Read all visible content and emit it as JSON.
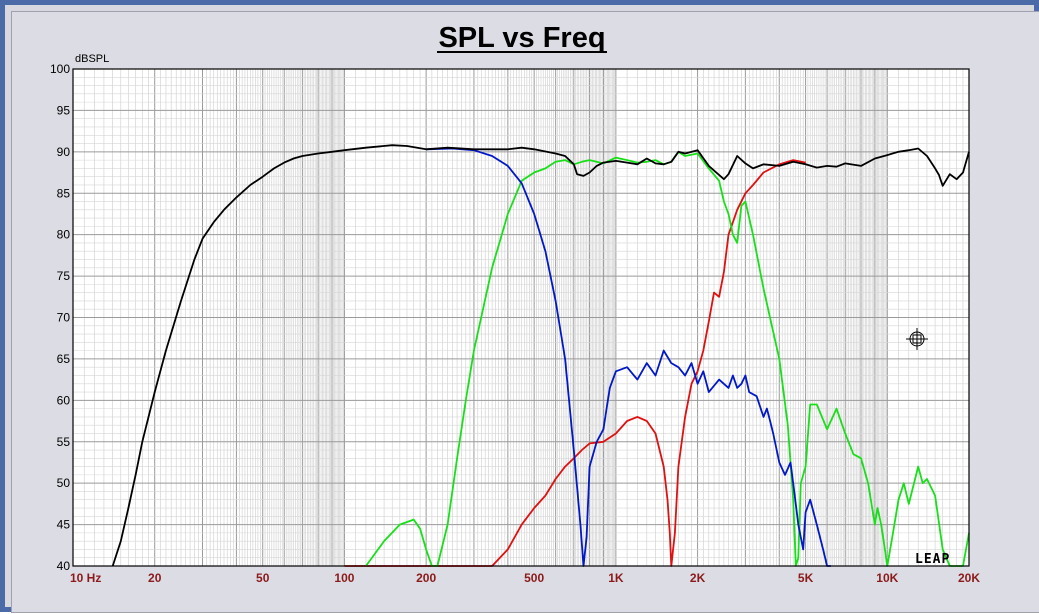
{
  "window": {
    "border_color": "#4a6aa8",
    "panel_color": "#dcdce4"
  },
  "chart_data": {
    "type": "line",
    "title": "SPL vs Freq",
    "ylabel": "dBSPL",
    "xlabel": "",
    "x_scale": "log",
    "xlim": [
      10,
      20000
    ],
    "ylim": [
      40,
      100
    ],
    "grid": true,
    "y_ticks": [
      "100",
      "95",
      "90",
      "85",
      "80",
      "75",
      "70",
      "65",
      "60",
      "55",
      "50",
      "45",
      "40"
    ],
    "x_ticks": [
      {
        "value": 10,
        "label": "10  Hz"
      },
      {
        "value": 20,
        "label": "20"
      },
      {
        "value": 50,
        "label": "50"
      },
      {
        "value": 100,
        "label": "100"
      },
      {
        "value": 200,
        "label": "200"
      },
      {
        "value": 500,
        "label": "500"
      },
      {
        "value": 1000,
        "label": "1K"
      },
      {
        "value": 2000,
        "label": "2K"
      },
      {
        "value": 5000,
        "label": "5K"
      },
      {
        "value": 10000,
        "label": "10K"
      },
      {
        "value": 20000,
        "label": "20K"
      }
    ],
    "series": [
      {
        "color": "#000000",
        "x": [
          14,
          15,
          16,
          17,
          18,
          20,
          22,
          25,
          28,
          30,
          33,
          36,
          40,
          45,
          50,
          55,
          60,
          65,
          70,
          80,
          90,
          100,
          120,
          150,
          170,
          200,
          240,
          300,
          400,
          450,
          500,
          600,
          650,
          700,
          720,
          760,
          800,
          850,
          900,
          1000,
          1100,
          1200,
          1300,
          1400,
          1500,
          1600,
          1700,
          1800,
          2000,
          2200,
          2500,
          2600,
          2800,
          3000,
          3200,
          3500,
          4000,
          4500,
          5000,
          5500,
          6000,
          6500,
          7000,
          8000,
          9000,
          10000,
          11000,
          12000,
          13000,
          14000,
          15000,
          15500,
          16000,
          17000,
          18000,
          19000,
          20000
        ],
        "y": [
          40,
          43,
          47,
          51,
          55,
          61,
          66,
          72,
          77,
          79.5,
          81.5,
          83,
          84.5,
          86,
          87,
          88,
          88.7,
          89.2,
          89.5,
          89.8,
          90,
          90.2,
          90.5,
          90.8,
          90.7,
          90.3,
          90.5,
          90.3,
          90.3,
          90.5,
          90.3,
          89.8,
          89.5,
          88.5,
          87.3,
          87.1,
          87.5,
          88.3,
          88.7,
          88.9,
          88.7,
          88.5,
          89.2,
          88.6,
          88.5,
          88.8,
          90,
          89.8,
          90.2,
          88.3,
          86.7,
          87.3,
          89.5,
          88.6,
          88,
          88.5,
          88.3,
          88.8,
          88.5,
          88.1,
          88.3,
          88.2,
          88.6,
          88.3,
          89.2,
          89.6,
          90,
          90.2,
          90.4,
          89.5,
          88,
          87.2,
          85.9,
          87.3,
          86.7,
          87.5,
          90
        ]
      },
      {
        "color": "#0018c8",
        "x": [
          200,
          250,
          300,
          350,
          400,
          450,
          500,
          550,
          600,
          650,
          700,
          740,
          760,
          780,
          800,
          850,
          900,
          950,
          1000,
          1100,
          1200,
          1300,
          1400,
          1500,
          1600,
          1700,
          1800,
          1900,
          2000,
          2100,
          2200,
          2400,
          2600,
          2700,
          2800,
          2900,
          3000,
          3100,
          3300,
          3500,
          3600,
          3700,
          3800,
          4000,
          4200,
          4400,
          4500,
          4700,
          4900,
          5000,
          5200,
          5500,
          5800,
          6000,
          6200
        ],
        "y": [
          90.3,
          90.4,
          90.2,
          89.5,
          88.3,
          86.2,
          82.5,
          78,
          72,
          65,
          54,
          45,
          40,
          43.5,
          52,
          55,
          56.5,
          61.5,
          63.5,
          64,
          62.5,
          64.5,
          63,
          66,
          64.5,
          64,
          63,
          64.5,
          62,
          63.5,
          61,
          62.5,
          61.5,
          63,
          61.5,
          62,
          63,
          61,
          60.5,
          58,
          59,
          57.5,
          56,
          52.5,
          51,
          52.5,
          50,
          45,
          42,
          46.5,
          48,
          45,
          42,
          40,
          40
        ]
      },
      {
        "color": "#18e018",
        "x": [
          120,
          140,
          160,
          180,
          190,
          200,
          210,
          220,
          240,
          260,
          280,
          300,
          350,
          400,
          450,
          500,
          550,
          600,
          650,
          700,
          750,
          800,
          900,
          1000,
          1100,
          1200,
          1300,
          1400,
          1500,
          1600,
          1700,
          1800,
          2000,
          2200,
          2400,
          2500,
          2600,
          2700,
          2800,
          2900,
          3000,
          3200,
          3500,
          4000,
          4300,
          4500,
          4600,
          4700,
          4800,
          5000,
          5200,
          5500,
          6000,
          6500,
          7000,
          7500,
          8000,
          8500,
          9000,
          9200,
          9500,
          10000,
          10500,
          11000,
          11500,
          12000,
          13000,
          13500,
          14000,
          15000,
          16000,
          17000,
          18000,
          19000,
          20000
        ],
        "y": [
          40,
          43,
          45,
          45.6,
          44.5,
          42,
          40,
          40,
          45,
          53,
          60,
          66,
          76,
          82.5,
          86.5,
          87.5,
          88,
          88.8,
          89,
          88.5,
          88.8,
          89,
          88.6,
          89.3,
          89,
          88.7,
          88.8,
          89,
          88.5,
          88.8,
          90,
          89.5,
          89.8,
          88,
          86.5,
          84,
          82.5,
          80,
          79,
          83.5,
          84,
          80,
          73.5,
          65,
          57,
          48,
          40,
          41,
          50,
          52,
          59.5,
          59.5,
          56.5,
          59,
          56,
          53.5,
          53,
          50,
          45,
          47,
          45,
          40,
          44,
          48,
          50,
          47.5,
          52,
          50,
          50.5,
          48.5,
          42,
          40,
          40,
          40,
          44
        ]
      },
      {
        "color": "#e01010",
        "x": [
          100,
          200,
          300,
          350,
          400,
          450,
          500,
          550,
          600,
          650,
          700,
          750,
          800,
          900,
          1000,
          1100,
          1200,
          1300,
          1400,
          1500,
          1550,
          1580,
          1600,
          1650,
          1700,
          1800,
          1900,
          2000,
          2100,
          2200,
          2300,
          2400,
          2500,
          2600,
          2700,
          2800,
          3000,
          3200,
          3500,
          4000,
          4500,
          5000
        ],
        "y": [
          40,
          40,
          40,
          40,
          42,
          45,
          47,
          48.5,
          50.5,
          52,
          53,
          54,
          54.8,
          55,
          56,
          57.5,
          58,
          57.5,
          56,
          52,
          48,
          44,
          40,
          44,
          52,
          58,
          62,
          63.5,
          66,
          69.5,
          73,
          72.5,
          75.5,
          80,
          81.5,
          83,
          85,
          86,
          87.5,
          88.5,
          89,
          88.7
        ]
      }
    ]
  },
  "logo": {
    "text": "LEAP"
  }
}
